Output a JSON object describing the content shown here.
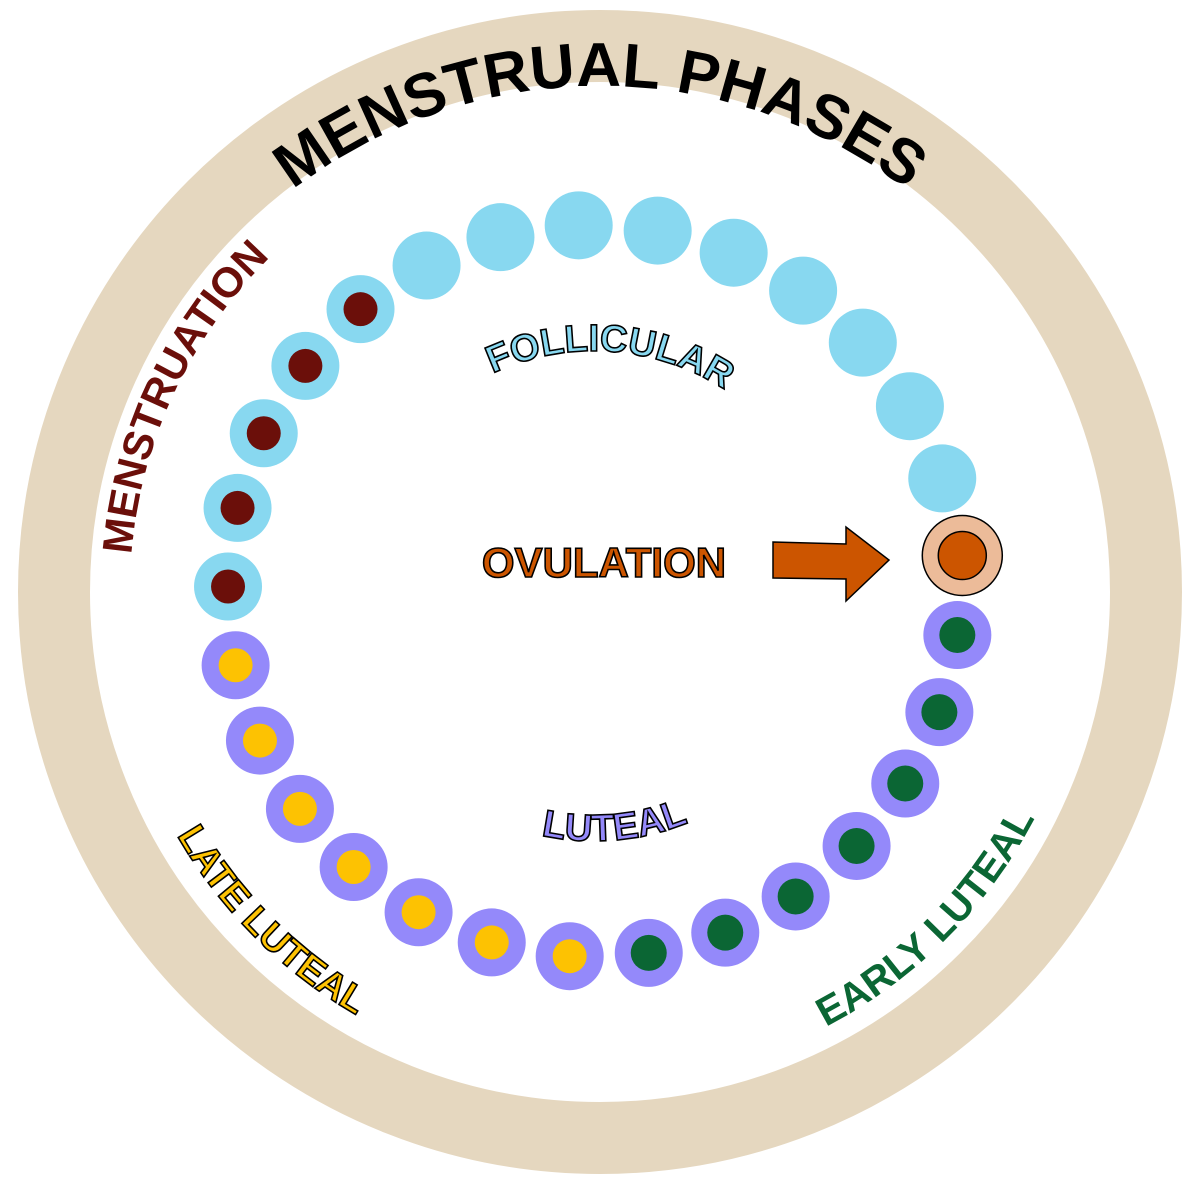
{
  "title": "MENSTRUAL PHASES",
  "labels": {
    "menstruation": "MENSTRUATION",
    "follicular": "FOLLICULAR",
    "ovulation": "OVULATION",
    "luteal": "LUTEAL",
    "late_luteal": "LATE LUTEAL",
    "early_luteal": "EARLY LUTEAL"
  },
  "colors": {
    "ring": "#e5d7bf",
    "title": "#000000",
    "follicular": "#88d8f0",
    "menstruation": "#6b0f0a",
    "luteal": "#9489fa",
    "late_luteal": "#fdc202",
    "early_luteal": "#0b6634",
    "ovulation_outer": "#ecbb99",
    "ovulation": "#cc5500"
  },
  "cycle_days": [
    {
      "phase": "ovulation",
      "count": 1
    },
    {
      "phase": "early_luteal",
      "count": 7
    },
    {
      "phase": "late_luteal",
      "count": 7
    },
    {
      "phase": "menstruation",
      "count": 5
    },
    {
      "phase": "follicular",
      "count": 9
    }
  ]
}
